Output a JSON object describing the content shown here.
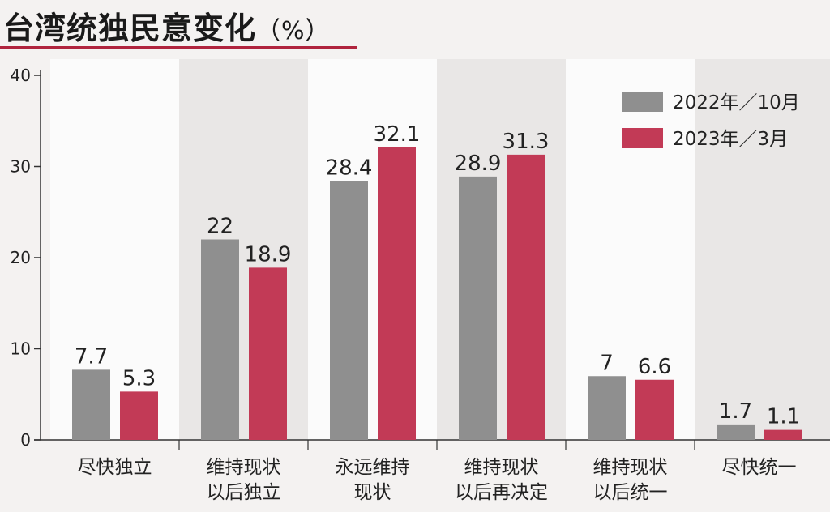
{
  "chart_data": {
    "type": "bar",
    "title": "台湾统独民意变化",
    "unit": "（%）",
    "categories": [
      [
        "尽快独立"
      ],
      [
        "维持现状",
        "以后独立"
      ],
      [
        "永远维持",
        "现状"
      ],
      [
        "维持现状",
        "以后再决定"
      ],
      [
        "维持现状",
        "以后统一"
      ],
      [
        "尽快统一"
      ]
    ],
    "series": [
      {
        "name": "2022年／10月",
        "values": [
          7.7,
          22,
          28.4,
          28.9,
          7,
          1.7
        ],
        "labels": [
          "7.7",
          "22",
          "28.4",
          "28.9",
          "7",
          "1.7"
        ],
        "color": "#8f8f8f"
      },
      {
        "name": "2023年／3月",
        "values": [
          5.3,
          18.9,
          32.1,
          31.3,
          6.6,
          1.1
        ],
        "labels": [
          "5.3",
          "18.9",
          "32.1",
          "31.3",
          "6.6",
          "1.1"
        ],
        "color": "#c23a56"
      }
    ],
    "ylim": [
      0,
      40
    ],
    "yticks": [
      "0",
      "10",
      "20",
      "30",
      "40"
    ],
    "legend": "top-right",
    "grid": false,
    "band_colors": [
      "#fbfbfb",
      "#e9e7e6"
    ]
  }
}
